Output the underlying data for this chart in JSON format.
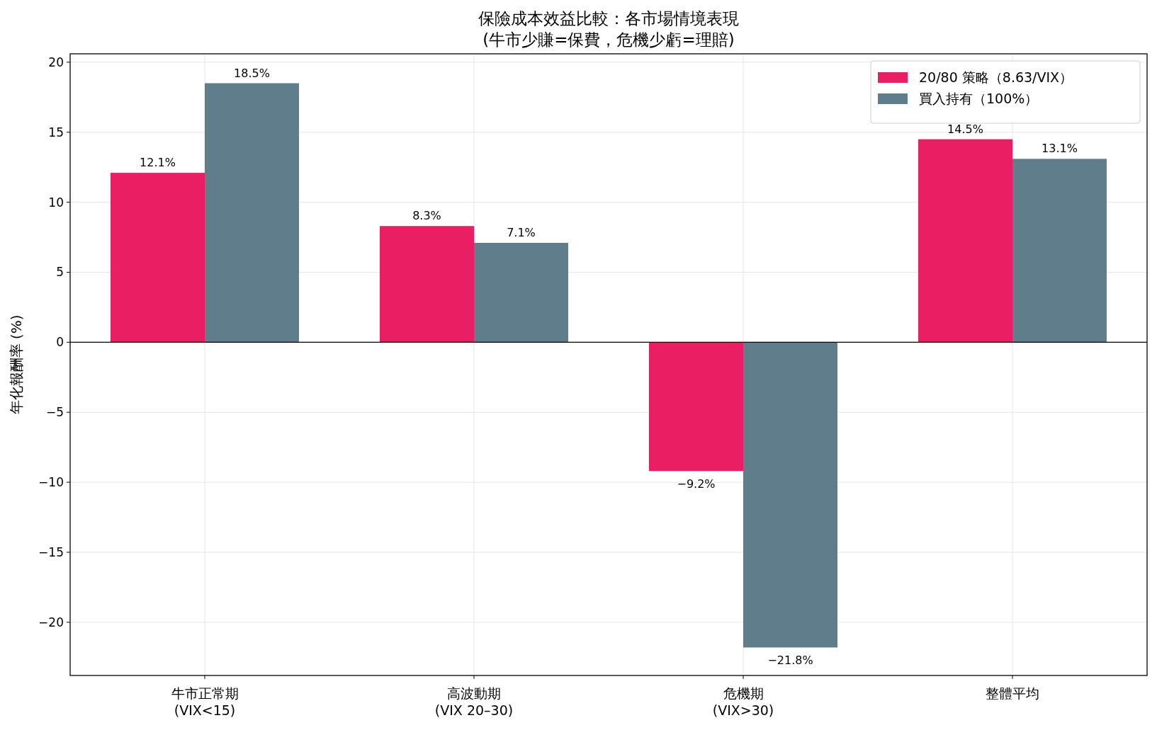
{
  "chart_data": {
    "type": "bar",
    "title": "保險成本效益比較：各市場情境表現",
    "subtitle": "(牛市少賺=保費，危機少虧=理賠)",
    "ylabel": "年化報酬率 (%)",
    "categories": [
      "牛市正常期\n(VIX<15)",
      "高波動期\n(VIX 20–30)",
      "危機期\n(VIX>30)",
      "整體平均"
    ],
    "series": [
      {
        "name": "20/80 策略（8.63/VIX）",
        "color": "#e91e63",
        "values": [
          12.1,
          8.3,
          -9.2,
          14.5
        ],
        "value_labels": [
          "12.1%",
          "8.3%",
          "−9.2%",
          "14.5%"
        ]
      },
      {
        "name": "買入持有（100%）",
        "color": "#607d8b",
        "values": [
          18.5,
          7.1,
          -21.8,
          13.1
        ],
        "value_labels": [
          "18.5%",
          "7.1%",
          "−21.8%",
          "13.1%"
        ]
      }
    ],
    "ylim": [
      -23.8,
      20.6
    ],
    "yticks": [
      {
        "value": -20,
        "label": "−20"
      },
      {
        "value": -15,
        "label": "−15"
      },
      {
        "value": -10,
        "label": "−10"
      },
      {
        "value": -5,
        "label": "−5"
      },
      0,
      5,
      10,
      15,
      20
    ],
    "ref_lines": [
      {
        "axis": "y",
        "value": 0,
        "color": "#000000"
      }
    ],
    "grid": true,
    "legend": "top right"
  }
}
